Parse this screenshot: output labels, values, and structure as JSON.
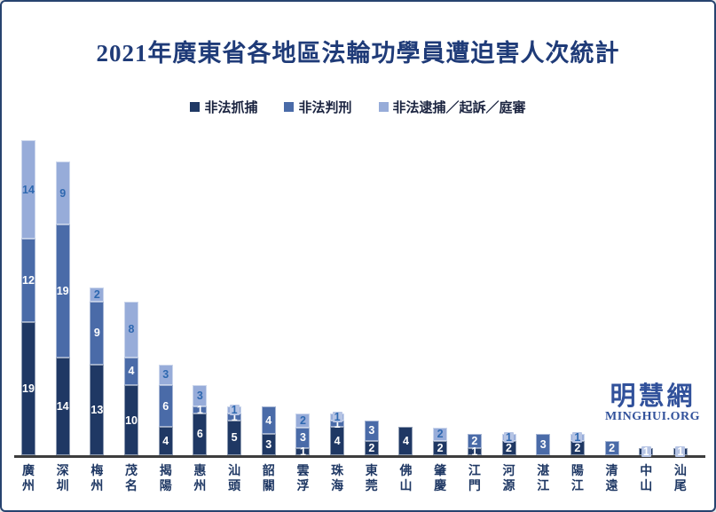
{
  "page": {
    "title": "2021年廣東省各地區法輪功學員遭迫害人次統計"
  },
  "legend": {
    "items": [
      {
        "label": "非法抓捕",
        "color": "#1F3864"
      },
      {
        "label": "非法判刑",
        "color": "#4A6BA8"
      },
      {
        "label": "非法逮捕／起訴／庭審",
        "color": "#97ACD9"
      }
    ]
  },
  "watermark": {
    "cn": "明慧網",
    "en": "MINGHUI.ORG"
  },
  "colors": {
    "title_text": "#1F3B78",
    "axis_line": "#3d3d3d",
    "category_text": "#1F3864",
    "dark_series": "#1F3864",
    "medium_series": "#4A6BA8",
    "light_series": "#97ACD9",
    "light_series_label_text": "#2E68B0",
    "dark_medium_label_text": "#FFFFFF",
    "watermark_text": "#31519B",
    "page_border": "#27436F"
  },
  "chart_data": {
    "type": "bar",
    "stacked": true,
    "title": "2021年廣東省各地區法輪功學員遭迫害人次統計",
    "xlabel": "",
    "ylabel": "",
    "ylim": [
      0,
      45
    ],
    "grid": false,
    "legend_position": "top",
    "categories": [
      "廣州",
      "深圳",
      "梅州",
      "茂名",
      "揭陽",
      "惠州",
      "汕頭",
      "韶關",
      "雲浮",
      "珠海",
      "東莞",
      "佛山",
      "肇慶",
      "江門",
      "河源",
      "湛江",
      "陽江",
      "清遠",
      "中山",
      "汕尾"
    ],
    "series": [
      {
        "name": "非法抓捕",
        "color": "#1F3864",
        "label_text_color": "#FFFFFF",
        "values": [
          19,
          14,
          13,
          10,
          4,
          6,
          5,
          3,
          1,
          4,
          2,
          4,
          2,
          1,
          2,
          0,
          2,
          0,
          1,
          1
        ]
      },
      {
        "name": "非法判刑",
        "color": "#4A6BA8",
        "label_text_color": "#FFFFFF",
        "values": [
          12,
          19,
          9,
          4,
          6,
          1,
          1,
          4,
          3,
          1,
          3,
          0,
          0,
          2,
          0,
          3,
          0,
          2,
          0,
          0
        ]
      },
      {
        "name": "非法逮捕／起訴／庭審",
        "color": "#97ACD9",
        "label_text_color": "#2E68B0",
        "values": [
          14,
          9,
          2,
          8,
          3,
          3,
          1,
          0,
          2,
          1,
          0,
          0,
          2,
          0,
          1,
          0,
          1,
          0,
          0,
          0
        ]
      }
    ],
    "totals": [
      45,
      42,
      24,
      22,
      13,
      10,
      7,
      7,
      6,
      6,
      5,
      4,
      4,
      3,
      3,
      3,
      3,
      2,
      1,
      1
    ]
  }
}
